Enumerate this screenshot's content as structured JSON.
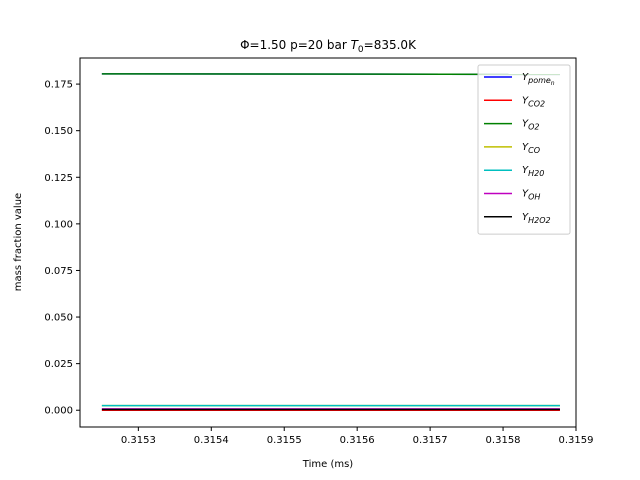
{
  "chart_data": {
    "type": "line",
    "title": "Φ=1.50 p=20 bar T₀=835.0K",
    "xlabel": "Time (ms)",
    "ylabel": "mass fraction value",
    "xlim": [
      0.31522,
      0.3159
    ],
    "ylim": [
      -0.009,
      0.189
    ],
    "x_ticks": [
      "0.3153",
      "0.3154",
      "0.3155",
      "0.3156",
      "0.3157",
      "0.3158",
      "0.3159"
    ],
    "y_ticks": [
      "0.000",
      "0.025",
      "0.050",
      "0.075",
      "0.100",
      "0.125",
      "0.150",
      "0.175"
    ],
    "legend_position": "top-right",
    "grid": false,
    "x": [
      0.31525,
      0.315878
    ],
    "series": [
      {
        "name": "Y_pome_n",
        "label_main": "Y",
        "label_sub": "pome",
        "label_subsub": "n",
        "color": "#0000ff",
        "values": [
          0.1805,
          0.1802
        ]
      },
      {
        "name": "Y_CO2",
        "label_main": "Y",
        "label_sub": "CO2",
        "color": "#ff0000",
        "values": [
          0.0,
          0.0
        ]
      },
      {
        "name": "Y_O2",
        "label_main": "Y",
        "label_sub": "O2",
        "color": "#008000",
        "values": [
          0.1805,
          0.1802
        ]
      },
      {
        "name": "Y_CO",
        "label_main": "Y",
        "label_sub": "CO",
        "color": "#bfbf00",
        "values": [
          0.0025,
          0.0025
        ]
      },
      {
        "name": "Y_H20",
        "label_main": "Y",
        "label_sub": "H20",
        "color": "#00bfbf",
        "values": [
          0.0025,
          0.0025
        ]
      },
      {
        "name": "Y_OH",
        "label_main": "Y",
        "label_sub": "OH",
        "color": "#bf00bf",
        "values": [
          0.0007,
          0.0007
        ]
      },
      {
        "name": "Y_H2O2",
        "label_main": "Y",
        "label_sub": "H2O2",
        "color": "#000000",
        "values": [
          0.0004,
          0.0004
        ]
      }
    ]
  }
}
